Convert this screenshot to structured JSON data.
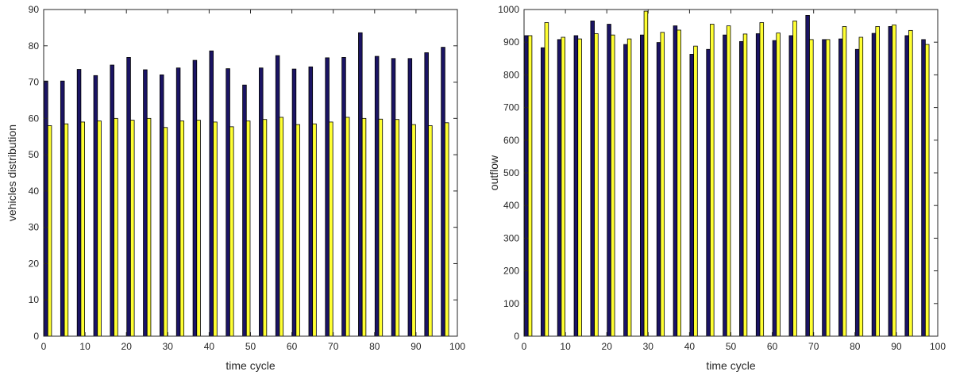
{
  "chart_data": [
    {
      "type": "bar",
      "xlabel": "time cycle",
      "ylabel": "vehicles distribution",
      "xlim": [
        0,
        100
      ],
      "ylim": [
        0,
        90
      ],
      "xticks": [
        0,
        10,
        20,
        30,
        40,
        50,
        60,
        70,
        80,
        90,
        100
      ],
      "yticks": [
        0,
        10,
        20,
        30,
        40,
        50,
        60,
        70,
        80,
        90
      ],
      "grid": false,
      "x": [
        1,
        5,
        9,
        13,
        17,
        21,
        25,
        29,
        33,
        37,
        41,
        45,
        49,
        53,
        57,
        61,
        65,
        69,
        73,
        77,
        81,
        85,
        89,
        93,
        97
      ],
      "series": [
        {
          "color": "#1b1464",
          "values": [
            70.3,
            70.3,
            73.5,
            71.8,
            74.7,
            76.8,
            73.4,
            72.0,
            73.9,
            76.0,
            78.6,
            73.7,
            69.2,
            73.9,
            77.3,
            73.6,
            74.2,
            76.7,
            76.8,
            83.6,
            77.1,
            76.5,
            76.5,
            78.1,
            79.6
          ]
        },
        {
          "color": "#ffff33",
          "values": [
            58.0,
            58.5,
            59.0,
            59.3,
            60.0,
            59.5,
            60.0,
            57.5,
            59.3,
            59.5,
            59.0,
            57.7,
            59.3,
            59.7,
            60.3,
            58.3,
            58.5,
            59.0,
            60.3,
            60.0,
            59.8,
            59.7,
            58.3,
            58.0,
            58.8
          ]
        }
      ]
    },
    {
      "type": "bar",
      "xlabel": "time cycle",
      "ylabel": "outflow",
      "xlim": [
        0,
        100
      ],
      "ylim": [
        0,
        1000
      ],
      "xticks": [
        0,
        10,
        20,
        30,
        40,
        50,
        60,
        70,
        80,
        90,
        100
      ],
      "yticks": [
        0,
        100,
        200,
        300,
        400,
        500,
        600,
        700,
        800,
        900,
        1000
      ],
      "grid": false,
      "x": [
        1,
        5,
        9,
        13,
        17,
        21,
        25,
        29,
        33,
        37,
        41,
        45,
        49,
        53,
        57,
        61,
        65,
        69,
        73,
        77,
        81,
        85,
        89,
        93,
        97
      ],
      "series": [
        {
          "color": "#1b1464",
          "values": [
            920,
            883,
            908,
            920,
            965,
            955,
            893,
            922,
            899,
            950,
            863,
            878,
            922,
            902,
            926,
            905,
            920,
            982,
            908,
            910,
            878,
            927,
            948,
            920,
            908
          ]
        },
        {
          "color": "#ffff33",
          "values": [
            920,
            960,
            915,
            910,
            926,
            922,
            910,
            995,
            930,
            937,
            888,
            955,
            950,
            925,
            960,
            928,
            965,
            908,
            908,
            948,
            915,
            948,
            953,
            936,
            893
          ]
        }
      ]
    }
  ]
}
